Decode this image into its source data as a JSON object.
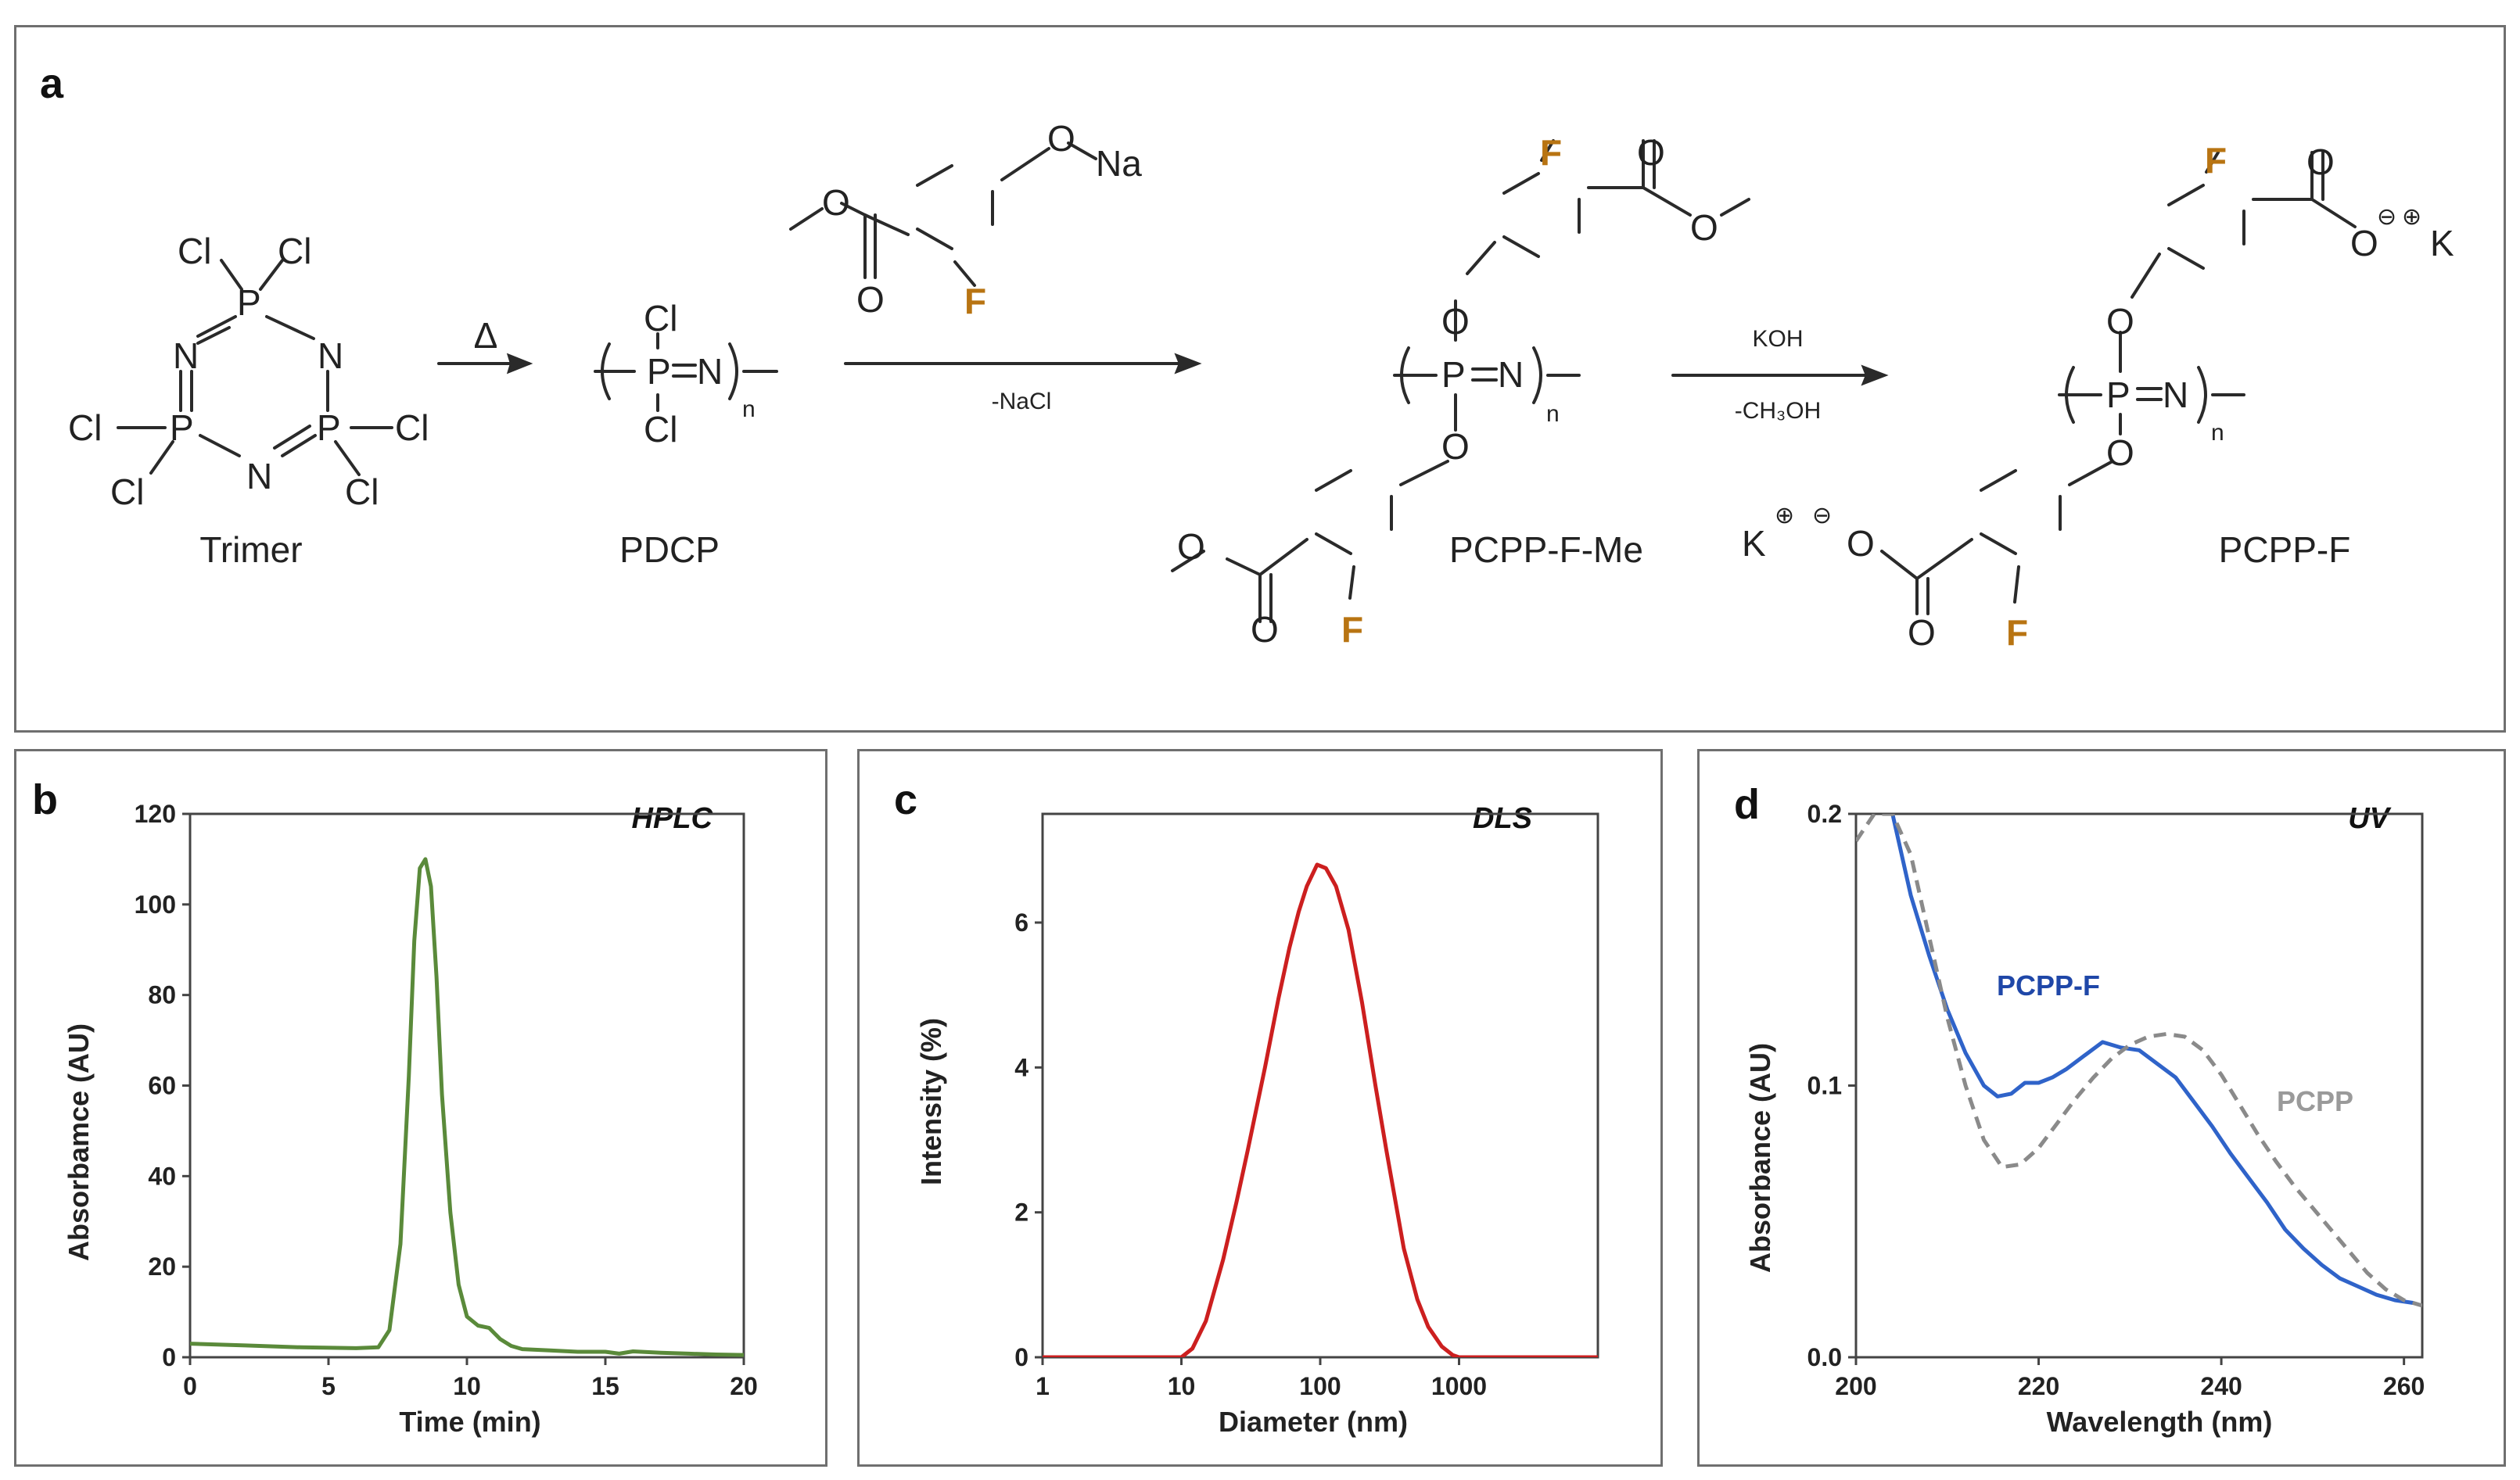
{
  "panel_a": {
    "label": "a",
    "trimer_label": "Trimer",
    "pdcp_label": "PDCP",
    "pcpp_f_me_label": "PCPP-F-Me",
    "pcpp_f_label": "PCPP-F",
    "step1_condition": "Δ",
    "step2_condition_below": "-NaCl",
    "step3_condition_above": "KOH",
    "step3_condition_below": "-CH₃OH",
    "atoms": {
      "P": "P",
      "N": "N",
      "Cl": "Cl",
      "O": "O",
      "F": "F",
      "Na": "Na",
      "K": "K",
      "n": "n",
      "minus": "⊖",
      "plus": "⊕"
    },
    "colors": {
      "fluorine": "#b87412",
      "bond": "#2a2a2a"
    }
  },
  "panel_b": {
    "label": "b",
    "chart_data": {
      "type": "line",
      "title": "HPLC",
      "xlabel": "Time (min)",
      "ylabel": "Absorbamce (AU)",
      "xlim": [
        0,
        20
      ],
      "ylim": [
        0,
        120
      ],
      "xticks": [
        0,
        5,
        10,
        15,
        20
      ],
      "yticks": [
        0,
        20,
        40,
        60,
        80,
        100,
        120
      ],
      "color": "#5a8a3a",
      "series": [
        {
          "x": [
            0,
            2,
            4,
            6,
            6.8,
            7.2,
            7.6,
            7.9,
            8.1,
            8.3,
            8.5,
            8.7,
            8.9,
            9.1,
            9.4,
            9.7,
            10.0,
            10.4,
            10.8,
            11.2,
            11.6,
            12.0,
            13,
            14,
            15,
            15.5,
            16,
            17,
            18,
            19,
            20
          ],
          "y": [
            3,
            2.6,
            2.2,
            2,
            2.2,
            6,
            25,
            62,
            92,
            108,
            110,
            104,
            84,
            58,
            32,
            16,
            9,
            7,
            6.5,
            4,
            2.5,
            1.8,
            1.5,
            1.2,
            1.2,
            0.8,
            1.3,
            1,
            0.8,
            0.6,
            0.5
          ]
        }
      ]
    }
  },
  "panel_c": {
    "label": "c",
    "chart_data": {
      "type": "line",
      "title": "DLS",
      "xlabel": "Diameter (nm)",
      "ylabel": "Intensity (%)",
      "xscale": "log",
      "xlim": [
        1,
        10000
      ],
      "ylim": [
        0,
        7.5
      ],
      "xticks": [
        1,
        10,
        100,
        1000
      ],
      "yticks": [
        0,
        2,
        4,
        6
      ],
      "color": "#cc1f1f",
      "series": [
        {
          "x": [
            1,
            10,
            12,
            15,
            20,
            25,
            30,
            40,
            50,
            60,
            70,
            80,
            95,
            110,
            130,
            160,
            200,
            250,
            300,
            400,
            500,
            600,
            750,
            900,
            1000,
            10000
          ],
          "y": [
            0,
            0,
            0.12,
            0.5,
            1.35,
            2.15,
            2.85,
            4.0,
            4.95,
            5.65,
            6.15,
            6.5,
            6.8,
            6.75,
            6.5,
            5.9,
            4.9,
            3.75,
            2.85,
            1.5,
            0.8,
            0.42,
            0.15,
            0.03,
            0,
            0
          ]
        }
      ]
    }
  },
  "panel_d": {
    "label": "d",
    "chart_data": {
      "type": "line",
      "title": "UV",
      "xlabel": "Wavelength (nm)",
      "ylabel": "Absorbance (AU)",
      "xlim": [
        200,
        262
      ],
      "ylim": [
        0,
        0.2
      ],
      "xticks": [
        200,
        220,
        240,
        260
      ],
      "yticks": [
        0.0,
        0.1,
        0.2
      ],
      "ytick_labels": [
        "0.0",
        "0.1",
        "0.2"
      ],
      "series": [
        {
          "name": "PCPP-F",
          "color": "#2f63c9",
          "dash": false,
          "x": [
            204,
            206,
            208,
            210,
            212,
            214,
            215.5,
            217,
            218.5,
            220,
            221.5,
            223,
            225,
            227,
            229,
            231,
            233,
            235,
            237,
            239,
            241,
            243,
            245,
            247,
            249,
            251,
            253,
            255,
            257,
            259,
            261
          ],
          "y": [
            0.2,
            0.17,
            0.148,
            0.128,
            0.112,
            0.1,
            0.096,
            0.097,
            0.101,
            0.101,
            0.103,
            0.106,
            0.111,
            0.116,
            0.114,
            0.113,
            0.108,
            0.103,
            0.094,
            0.085,
            0.075,
            0.066,
            0.057,
            0.047,
            0.04,
            0.034,
            0.029,
            0.026,
            0.023,
            0.021,
            0.02
          ]
        },
        {
          "name": "PCPP",
          "color": "#8a8a8a",
          "dash": true,
          "x": [
            200,
            202,
            204,
            206,
            208,
            210,
            212,
            214,
            216,
            218,
            220,
            222,
            224,
            226,
            228,
            230,
            232,
            234,
            236,
            238,
            240,
            242,
            244,
            246,
            248,
            250,
            252,
            254,
            256,
            258,
            260,
            262
          ],
          "y": [
            0.19,
            0.2,
            0.2,
            0.185,
            0.155,
            0.125,
            0.1,
            0.08,
            0.07,
            0.071,
            0.077,
            0.086,
            0.095,
            0.103,
            0.11,
            0.115,
            0.118,
            0.119,
            0.118,
            0.113,
            0.104,
            0.093,
            0.082,
            0.072,
            0.063,
            0.055,
            0.047,
            0.039,
            0.031,
            0.025,
            0.021,
            0.019
          ]
        }
      ]
    }
  }
}
